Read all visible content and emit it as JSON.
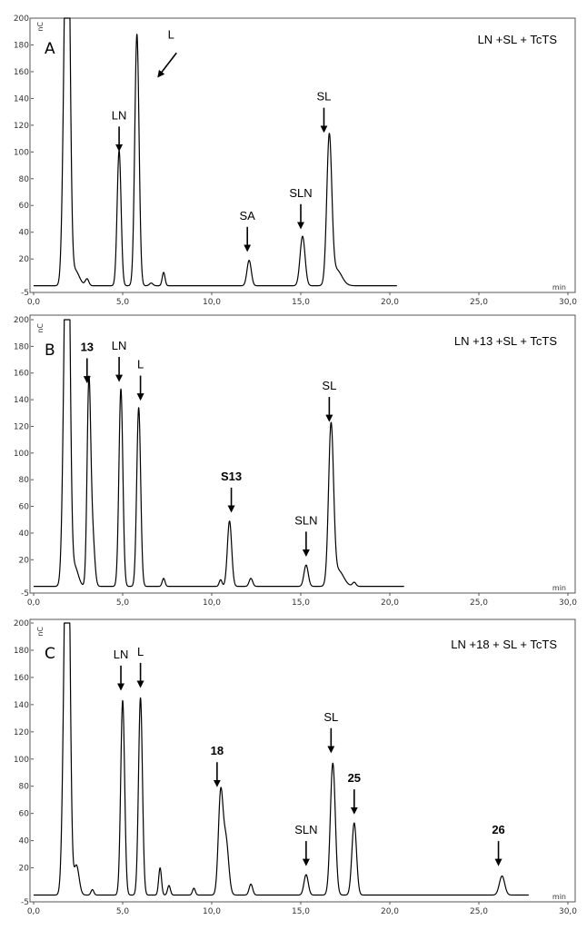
{
  "chart_data": [
    {
      "type": "line",
      "panel_label": "A",
      "title": "LN +SL + TcTS",
      "y_unit": "nC",
      "x_unit": "min",
      "xlim": [
        0,
        30
      ],
      "ylim": [
        -5,
        200
      ],
      "x_ticks": [
        "0,0",
        "5,0",
        "10,0",
        "15,0",
        "20,0",
        "25,0",
        "30,0"
      ],
      "y_ticks": [
        "-5",
        "20",
        "40",
        "60",
        "80",
        "100",
        "120",
        "140",
        "160",
        "180",
        "200"
      ],
      "trace_end": 20.4,
      "baseline": 0,
      "peaks": [
        {
          "x": 1.8,
          "height": 200,
          "width": 0.14
        },
        {
          "x": 1.95,
          "height": 195,
          "width": 0.12
        },
        {
          "x": 2.3,
          "height": 12,
          "width": 0.25
        },
        {
          "x": 3.0,
          "height": 5,
          "width": 0.1
        },
        {
          "x": 4.8,
          "height": 101,
          "width": 0.11
        },
        {
          "x": 5.8,
          "height": 188,
          "width": 0.12
        },
        {
          "x": 6.6,
          "height": 2,
          "width": 0.1
        },
        {
          "x": 7.3,
          "height": 10,
          "width": 0.08
        },
        {
          "x": 12.1,
          "height": 19,
          "width": 0.12
        },
        {
          "x": 15.1,
          "height": 37,
          "width": 0.14
        },
        {
          "x": 16.6,
          "height": 109,
          "width": 0.14
        },
        {
          "x": 17.0,
          "height": 12,
          "width": 0.3
        }
      ],
      "annotations": [
        {
          "text": "LN",
          "x": 4.8,
          "y": 100,
          "bold": false,
          "arrow": "down"
        },
        {
          "text": "L",
          "x": 6.9,
          "y": 155,
          "bold": false,
          "arrow": "diagonal"
        },
        {
          "text": "SA",
          "x": 12.0,
          "y": 25,
          "bold": false,
          "arrow": "down"
        },
        {
          "text": "SLN",
          "x": 15.0,
          "y": 42,
          "bold": false,
          "arrow": "down"
        },
        {
          "text": "SL",
          "x": 16.3,
          "y": 114,
          "bold": false,
          "arrow": "down"
        }
      ]
    },
    {
      "type": "line",
      "panel_label": "B",
      "title": "LN +13 +SL + TcTS",
      "y_unit": "nC",
      "x_unit": "min",
      "xlim": [
        0,
        30
      ],
      "ylim": [
        -5,
        200
      ],
      "x_ticks": [
        "0,0",
        "5,0",
        "10,0",
        "15,0",
        "20,0",
        "25,0",
        "30,0"
      ],
      "y_ticks": [
        "-5",
        "20",
        "40",
        "60",
        "80",
        "100",
        "120",
        "140",
        "160",
        "180",
        "200"
      ],
      "trace_end": 20.8,
      "baseline": 0,
      "peaks": [
        {
          "x": 1.8,
          "height": 200,
          "width": 0.14
        },
        {
          "x": 1.95,
          "height": 195,
          "width": 0.12
        },
        {
          "x": 2.3,
          "height": 15,
          "width": 0.2
        },
        {
          "x": 3.1,
          "height": 147,
          "width": 0.1
        },
        {
          "x": 3.3,
          "height": 40,
          "width": 0.12
        },
        {
          "x": 4.9,
          "height": 148,
          "width": 0.11
        },
        {
          "x": 5.9,
          "height": 134,
          "width": 0.11
        },
        {
          "x": 7.3,
          "height": 6,
          "width": 0.08
        },
        {
          "x": 10.5,
          "height": 5,
          "width": 0.08
        },
        {
          "x": 11.0,
          "height": 49,
          "width": 0.12
        },
        {
          "x": 12.2,
          "height": 6,
          "width": 0.1
        },
        {
          "x": 15.3,
          "height": 16,
          "width": 0.12
        },
        {
          "x": 16.7,
          "height": 118,
          "width": 0.14
        },
        {
          "x": 17.1,
          "height": 12,
          "width": 0.3
        },
        {
          "x": 18.0,
          "height": 3,
          "width": 0.1
        }
      ],
      "annotations": [
        {
          "text": "13",
          "x": 3.0,
          "y": 152,
          "bold": true,
          "arrow": "down"
        },
        {
          "text": "LN",
          "x": 4.8,
          "y": 153,
          "bold": false,
          "arrow": "down"
        },
        {
          "text": "L",
          "x": 6.0,
          "y": 139,
          "bold": false,
          "arrow": "down"
        },
        {
          "text": "S13",
          "x": 11.1,
          "y": 55,
          "bold": true,
          "arrow": "down"
        },
        {
          "text": "SLN",
          "x": 15.3,
          "y": 22,
          "bold": false,
          "arrow": "down"
        },
        {
          "text": "SL",
          "x": 16.6,
          "y": 123,
          "bold": false,
          "arrow": "down"
        }
      ]
    },
    {
      "type": "line",
      "panel_label": "C",
      "title": "LN +18 + SL + TcTS",
      "y_unit": "nC",
      "x_unit": "min",
      "xlim": [
        0,
        30
      ],
      "ylim": [
        -5,
        200
      ],
      "x_ticks": [
        "0,0",
        "5,0",
        "10,0",
        "15,0",
        "20,0",
        "25,0",
        "30,0"
      ],
      "y_ticks": [
        "-5",
        "20",
        "40",
        "60",
        "80",
        "100",
        "120",
        "140",
        "160",
        "180",
        "200"
      ],
      "trace_end": 27.8,
      "baseline": 0,
      "peaks": [
        {
          "x": 1.8,
          "height": 200,
          "width": 0.14
        },
        {
          "x": 1.95,
          "height": 195,
          "width": 0.12
        },
        {
          "x": 2.4,
          "height": 22,
          "width": 0.15
        },
        {
          "x": 3.3,
          "height": 4,
          "width": 0.08
        },
        {
          "x": 5.0,
          "height": 143,
          "width": 0.11
        },
        {
          "x": 6.0,
          "height": 145,
          "width": 0.11
        },
        {
          "x": 7.1,
          "height": 20,
          "width": 0.08
        },
        {
          "x": 7.6,
          "height": 7,
          "width": 0.08
        },
        {
          "x": 9.0,
          "height": 5,
          "width": 0.08
        },
        {
          "x": 10.5,
          "height": 73,
          "width": 0.13
        },
        {
          "x": 10.8,
          "height": 40,
          "width": 0.15
        },
        {
          "x": 12.2,
          "height": 8,
          "width": 0.1
        },
        {
          "x": 15.3,
          "height": 15,
          "width": 0.12
        },
        {
          "x": 16.8,
          "height": 97,
          "width": 0.14
        },
        {
          "x": 18.0,
          "height": 53,
          "width": 0.13
        },
        {
          "x": 26.3,
          "height": 14,
          "width": 0.15
        }
      ],
      "annotations": [
        {
          "text": "LN",
          "x": 4.9,
          "y": 150,
          "bold": false,
          "arrow": "down"
        },
        {
          "text": "L",
          "x": 6.0,
          "y": 152,
          "bold": false,
          "arrow": "down"
        },
        {
          "text": "18",
          "x": 10.3,
          "y": 79,
          "bold": true,
          "arrow": "down"
        },
        {
          "text": "SLN",
          "x": 15.3,
          "y": 21,
          "bold": false,
          "arrow": "down"
        },
        {
          "text": "SL",
          "x": 16.7,
          "y": 104,
          "bold": false,
          "arrow": "down"
        },
        {
          "text": "25",
          "x": 18.0,
          "y": 59,
          "bold": true,
          "arrow": "down"
        },
        {
          "text": "26",
          "x": 26.1,
          "y": 21,
          "bold": true,
          "arrow": "down"
        }
      ]
    }
  ]
}
